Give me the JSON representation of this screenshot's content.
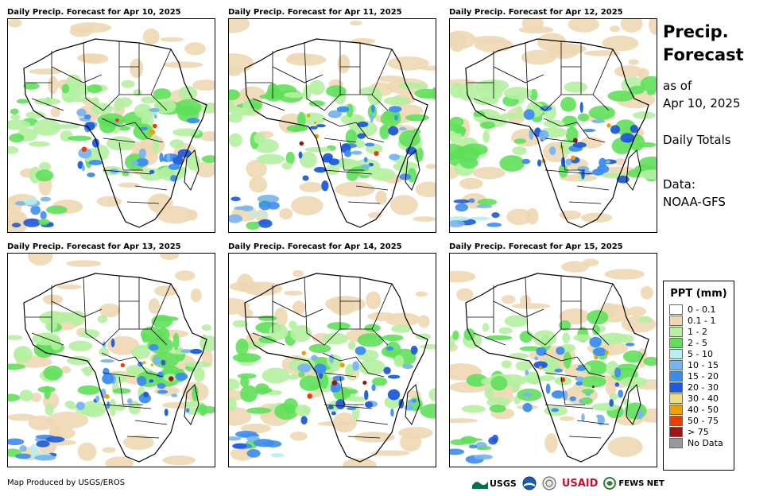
{
  "panels": [
    {
      "title": "Daily Precip. Forecast for Apr 10, 2025"
    },
    {
      "title": "Daily Precip. Forecast for Apr 11, 2025"
    },
    {
      "title": "Daily Precip. Forecast for Apr 12, 2025"
    },
    {
      "title": "Daily Precip. Forecast for Apr 13, 2025"
    },
    {
      "title": "Daily Precip. Forecast for Apr 14, 2025"
    },
    {
      "title": "Daily Precip. Forecast for Apr 15, 2025"
    }
  ],
  "sidebar": {
    "title_line1": "Precip.",
    "title_line2": "Forecast",
    "as_of_label": "as of",
    "as_of_date": "Apr 10, 2025",
    "totals": "Daily Totals",
    "data_label": "Data:",
    "data_source": "NOAA-GFS"
  },
  "legend": {
    "title": "PPT (mm)",
    "items": [
      {
        "label": "0 - 0.1",
        "color": "#ffffff"
      },
      {
        "label": "0.1 - 1",
        "color": "#eed8b4"
      },
      {
        "label": "1 - 2",
        "color": "#b4f0a0"
      },
      {
        "label": "2 - 5",
        "color": "#5fe05a"
      },
      {
        "label": "5 - 10",
        "color": "#b4f0f0"
      },
      {
        "label": "10 - 15",
        "color": "#78b4f0"
      },
      {
        "label": "15 - 20",
        "color": "#3c8cf0"
      },
      {
        "label": "20 - 30",
        "color": "#1e5adc"
      },
      {
        "label": "30 - 40",
        "color": "#f0dc82"
      },
      {
        "label": "40 - 50",
        "color": "#f0a000"
      },
      {
        "label": "50 - 75",
        "color": "#f03c00"
      },
      {
        "label": "> 75",
        "color": "#a01414"
      },
      {
        "label": "No Data",
        "color": "#999999"
      }
    ]
  },
  "footer": {
    "credit": "Map Produced by USGS/EROS",
    "logos": [
      {
        "name": "usgs-logo",
        "text": "USGS",
        "color": "#00704a"
      },
      {
        "name": "noaa-logo",
        "text": "",
        "color": "#1a5fa8"
      },
      {
        "name": "dos-seal-logo",
        "text": "",
        "color": "#555555"
      },
      {
        "name": "usaid-logo",
        "text": "USAID",
        "color": "#c4122f"
      },
      {
        "name": "fewsnet-logo",
        "text": "FEWS NET",
        "color": "#333333"
      }
    ]
  }
}
